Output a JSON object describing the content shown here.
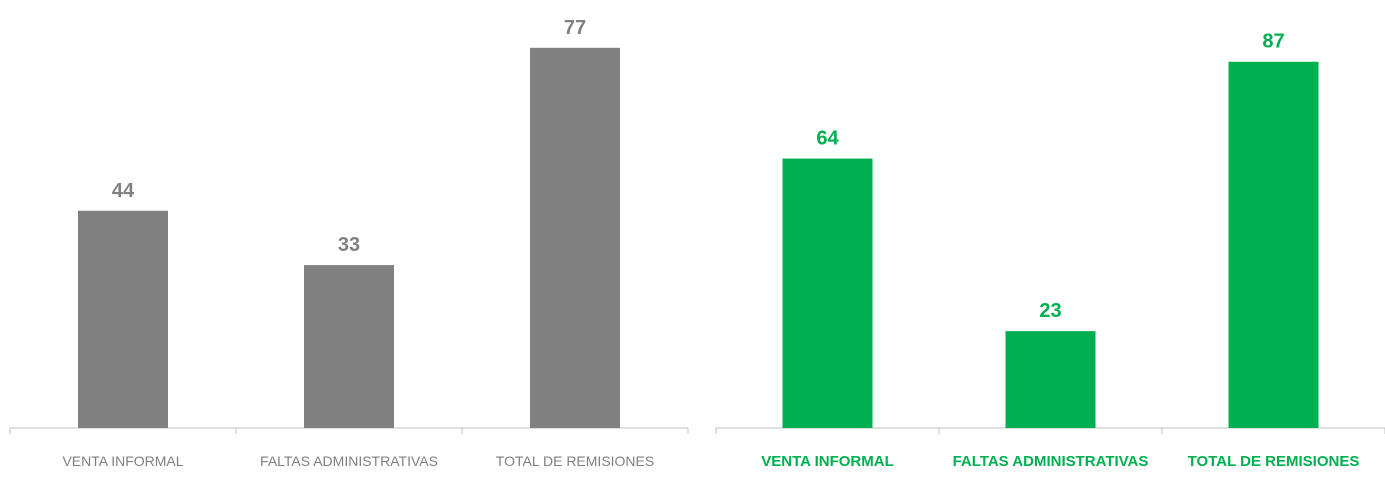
{
  "chart_data": [
    {
      "type": "bar",
      "categories": [
        "VENTA INFORMAL",
        "FALTAS ADMINISTRATIVAS",
        "TOTAL DE REMISIONES"
      ],
      "values": [
        44,
        33,
        77
      ],
      "color": "#808080",
      "ylim": [
        0,
        80
      ]
    },
    {
      "type": "bar",
      "categories": [
        "VENTA INFORMAL",
        "FALTAS ADMINISTRATIVAS",
        "TOTAL DE REMISIONES"
      ],
      "values": [
        64,
        23,
        87
      ],
      "color": "#00b050",
      "ylim": [
        0,
        100
      ]
    }
  ]
}
